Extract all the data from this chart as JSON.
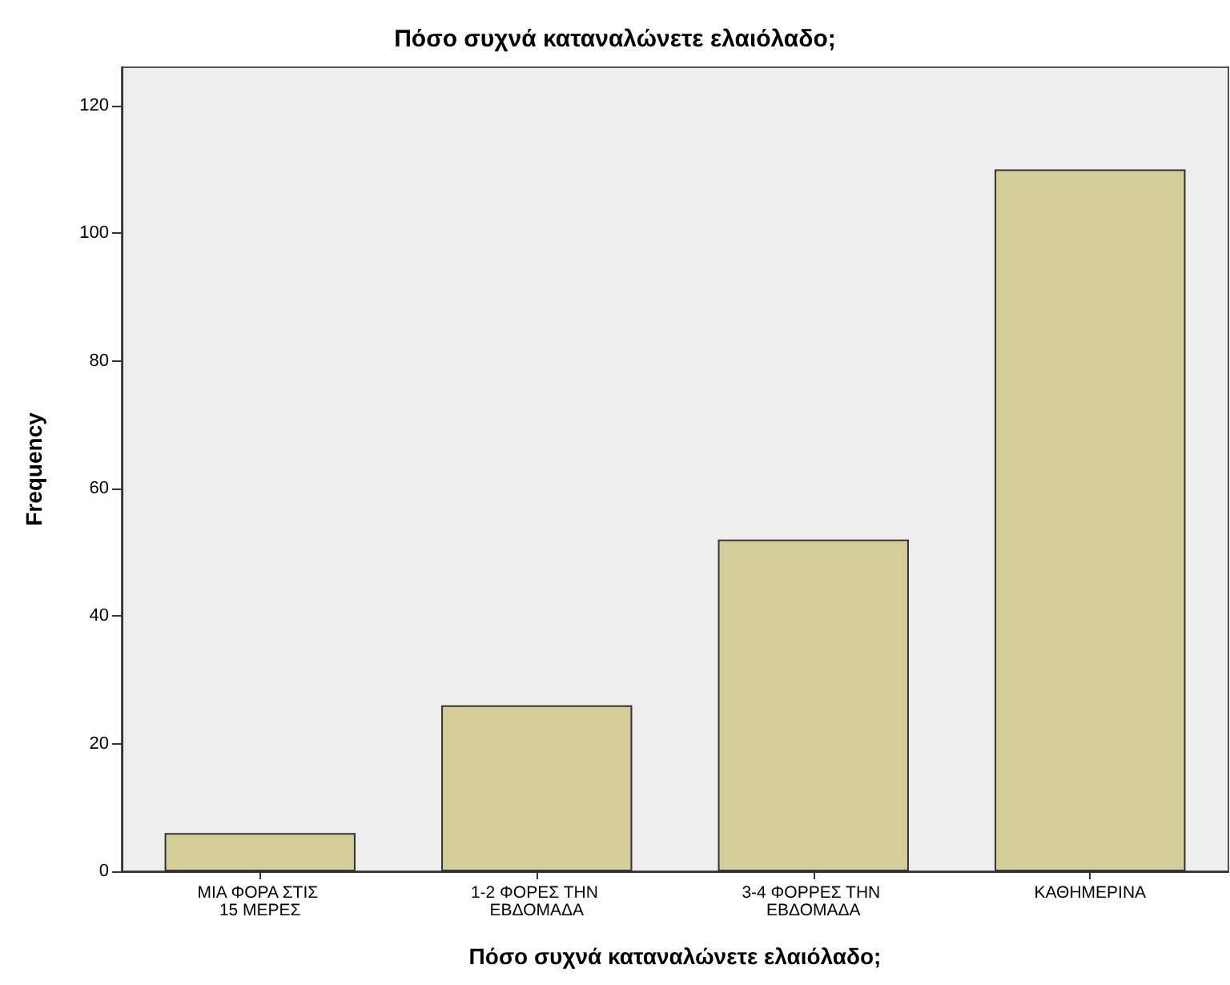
{
  "chart_data": {
    "type": "bar",
    "title": "Πόσο συχνά καταναλώνετε ελαιόλαδο;",
    "xlabel": "Πόσο συχνά καταναλώνετε ελαιόλαδο;",
    "ylabel": "Frequency",
    "categories": [
      "ΜΙΑ ΦΟΡΑ ΣΤΙΣ 15 ΜΕΡΕΣ",
      "1-2 ΦΟΡΕΣ ΤΗΝ ΕΒΔΟΜΑΔΑ",
      "3-4 ΦΟΡΡΕΣ ΤΗΝ ΕΒΔΟΜΑΔΑ",
      "ΚΑΘΗΜΕΡΙΝΑ"
    ],
    "values": [
      6,
      26,
      52,
      110
    ],
    "color": "#d3ce97",
    "ylim": [
      0,
      126
    ],
    "yticks": [
      0,
      20,
      40,
      60,
      80,
      100,
      120
    ]
  }
}
